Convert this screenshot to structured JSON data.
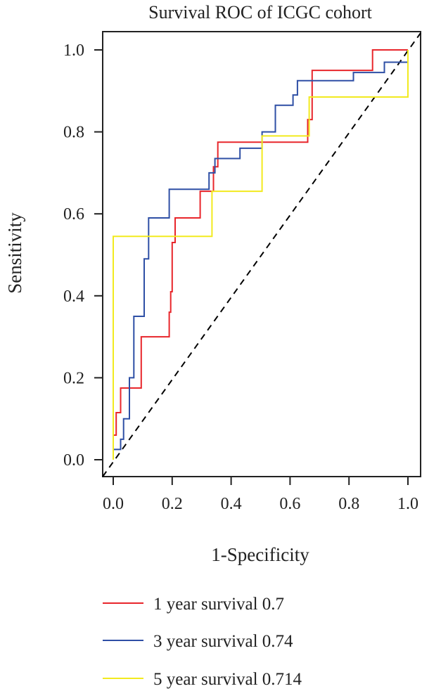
{
  "chart_data": {
    "type": "line",
    "title": "Survival ROC of ICGC cohort",
    "xlabel": "1-Specificity",
    "ylabel": "Sensitivity",
    "xlim": [
      0,
      1
    ],
    "ylim": [
      0,
      1
    ],
    "x_ticks": [
      "0.0",
      "0.2",
      "0.4",
      "0.6",
      "0.8",
      "1.0"
    ],
    "y_ticks": [
      "0.0",
      "0.2",
      "0.4",
      "0.6",
      "0.8",
      "1.0"
    ],
    "grid": false,
    "legend_position": "bottom",
    "reference_line": {
      "style": "dashed",
      "color": "#000000",
      "from": [
        0,
        0
      ],
      "to": [
        1,
        1
      ]
    },
    "series": [
      {
        "name": "1 year survival 0.7",
        "color": "#e8262b",
        "points": [
          [
            0.0,
            0.0
          ],
          [
            0.0,
            0.06
          ],
          [
            0.01,
            0.06
          ],
          [
            0.01,
            0.115
          ],
          [
            0.025,
            0.115
          ],
          [
            0.025,
            0.175
          ],
          [
            0.095,
            0.175
          ],
          [
            0.095,
            0.3
          ],
          [
            0.19,
            0.3
          ],
          [
            0.19,
            0.36
          ],
          [
            0.195,
            0.36
          ],
          [
            0.195,
            0.41
          ],
          [
            0.2,
            0.41
          ],
          [
            0.2,
            0.53
          ],
          [
            0.21,
            0.53
          ],
          [
            0.21,
            0.59
          ],
          [
            0.295,
            0.59
          ],
          [
            0.295,
            0.655
          ],
          [
            0.34,
            0.655
          ],
          [
            0.34,
            0.715
          ],
          [
            0.355,
            0.715
          ],
          [
            0.355,
            0.775
          ],
          [
            0.66,
            0.775
          ],
          [
            0.66,
            0.83
          ],
          [
            0.675,
            0.83
          ],
          [
            0.675,
            0.95
          ],
          [
            0.88,
            0.95
          ],
          [
            0.88,
            1.0
          ],
          [
            1.0,
            1.0
          ]
        ]
      },
      {
        "name": "3 year survival 0.74",
        "color": "#2e4fa5",
        "points": [
          [
            0.0,
            0.0
          ],
          [
            0.0,
            0.025
          ],
          [
            0.025,
            0.025
          ],
          [
            0.025,
            0.05
          ],
          [
            0.035,
            0.05
          ],
          [
            0.035,
            0.1
          ],
          [
            0.055,
            0.1
          ],
          [
            0.055,
            0.2
          ],
          [
            0.07,
            0.2
          ],
          [
            0.07,
            0.35
          ],
          [
            0.105,
            0.35
          ],
          [
            0.105,
            0.49
          ],
          [
            0.12,
            0.49
          ],
          [
            0.12,
            0.59
          ],
          [
            0.19,
            0.59
          ],
          [
            0.19,
            0.66
          ],
          [
            0.325,
            0.66
          ],
          [
            0.325,
            0.7
          ],
          [
            0.345,
            0.7
          ],
          [
            0.345,
            0.735
          ],
          [
            0.43,
            0.735
          ],
          [
            0.43,
            0.76
          ],
          [
            0.505,
            0.76
          ],
          [
            0.505,
            0.8
          ],
          [
            0.55,
            0.8
          ],
          [
            0.55,
            0.865
          ],
          [
            0.61,
            0.865
          ],
          [
            0.61,
            0.89
          ],
          [
            0.625,
            0.89
          ],
          [
            0.625,
            0.925
          ],
          [
            0.815,
            0.925
          ],
          [
            0.815,
            0.945
          ],
          [
            0.92,
            0.945
          ],
          [
            0.92,
            0.97
          ],
          [
            1.0,
            0.97
          ]
        ]
      },
      {
        "name": "5 year survival 0.714",
        "color": "#f2ea1f",
        "points": [
          [
            0.0,
            0.0
          ],
          [
            0.0,
            0.545
          ],
          [
            0.335,
            0.545
          ],
          [
            0.335,
            0.655
          ],
          [
            0.505,
            0.655
          ],
          [
            0.505,
            0.79
          ],
          [
            0.665,
            0.79
          ],
          [
            0.665,
            0.885
          ],
          [
            1.0,
            0.885
          ],
          [
            1.0,
            1.0
          ]
        ]
      }
    ]
  }
}
